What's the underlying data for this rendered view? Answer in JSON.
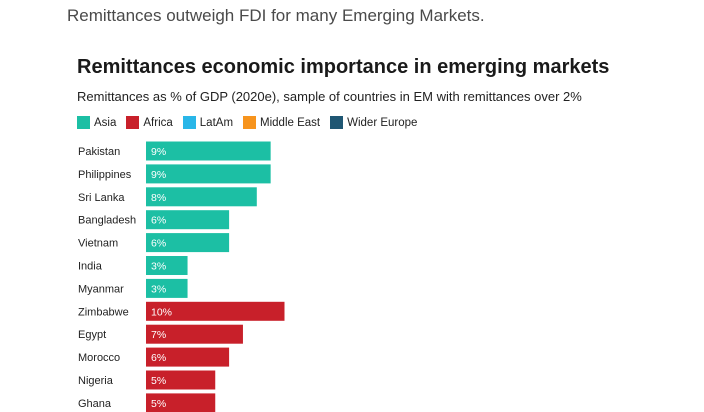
{
  "caption": "Remittances outweigh FDI for many Emerging Markets.",
  "chart_data": {
    "type": "bar",
    "orientation": "horizontal",
    "title": "Remittances economic importance in emerging markets",
    "subtitle": "Remittances as % of GDP (2020e), sample of countries in EM with remittances over 2%",
    "legend": [
      {
        "name": "Asia",
        "color": "#1cbfa4"
      },
      {
        "name": "Africa",
        "color": "#c8202a"
      },
      {
        "name": "LatAm",
        "color": "#29b6e8"
      },
      {
        "name": "Middle East",
        "color": "#f7941d"
      },
      {
        "name": "Wider Europe",
        "color": "#1f5773"
      }
    ],
    "categories": [
      "Pakistan",
      "Philippines",
      "Sri Lanka",
      "Bangladesh",
      "Vietnam",
      "India",
      "Myanmar",
      "Zimbabwe",
      "Egypt",
      "Morocco",
      "Nigeria",
      "Ghana"
    ],
    "values": [
      9,
      9,
      8,
      6,
      6,
      3,
      3,
      10,
      7,
      6,
      5,
      5
    ],
    "labels": [
      "9%",
      "9%",
      "8%",
      "6%",
      "6%",
      "3%",
      "3%",
      "10%",
      "7%",
      "6%",
      "5%",
      "5%"
    ],
    "regions": [
      "Asia",
      "Asia",
      "Asia",
      "Asia",
      "Asia",
      "Asia",
      "Asia",
      "Africa",
      "Africa",
      "Africa",
      "Africa",
      "Africa"
    ],
    "xlim": [
      0,
      10
    ],
    "xlabel": "",
    "ylabel": ""
  }
}
